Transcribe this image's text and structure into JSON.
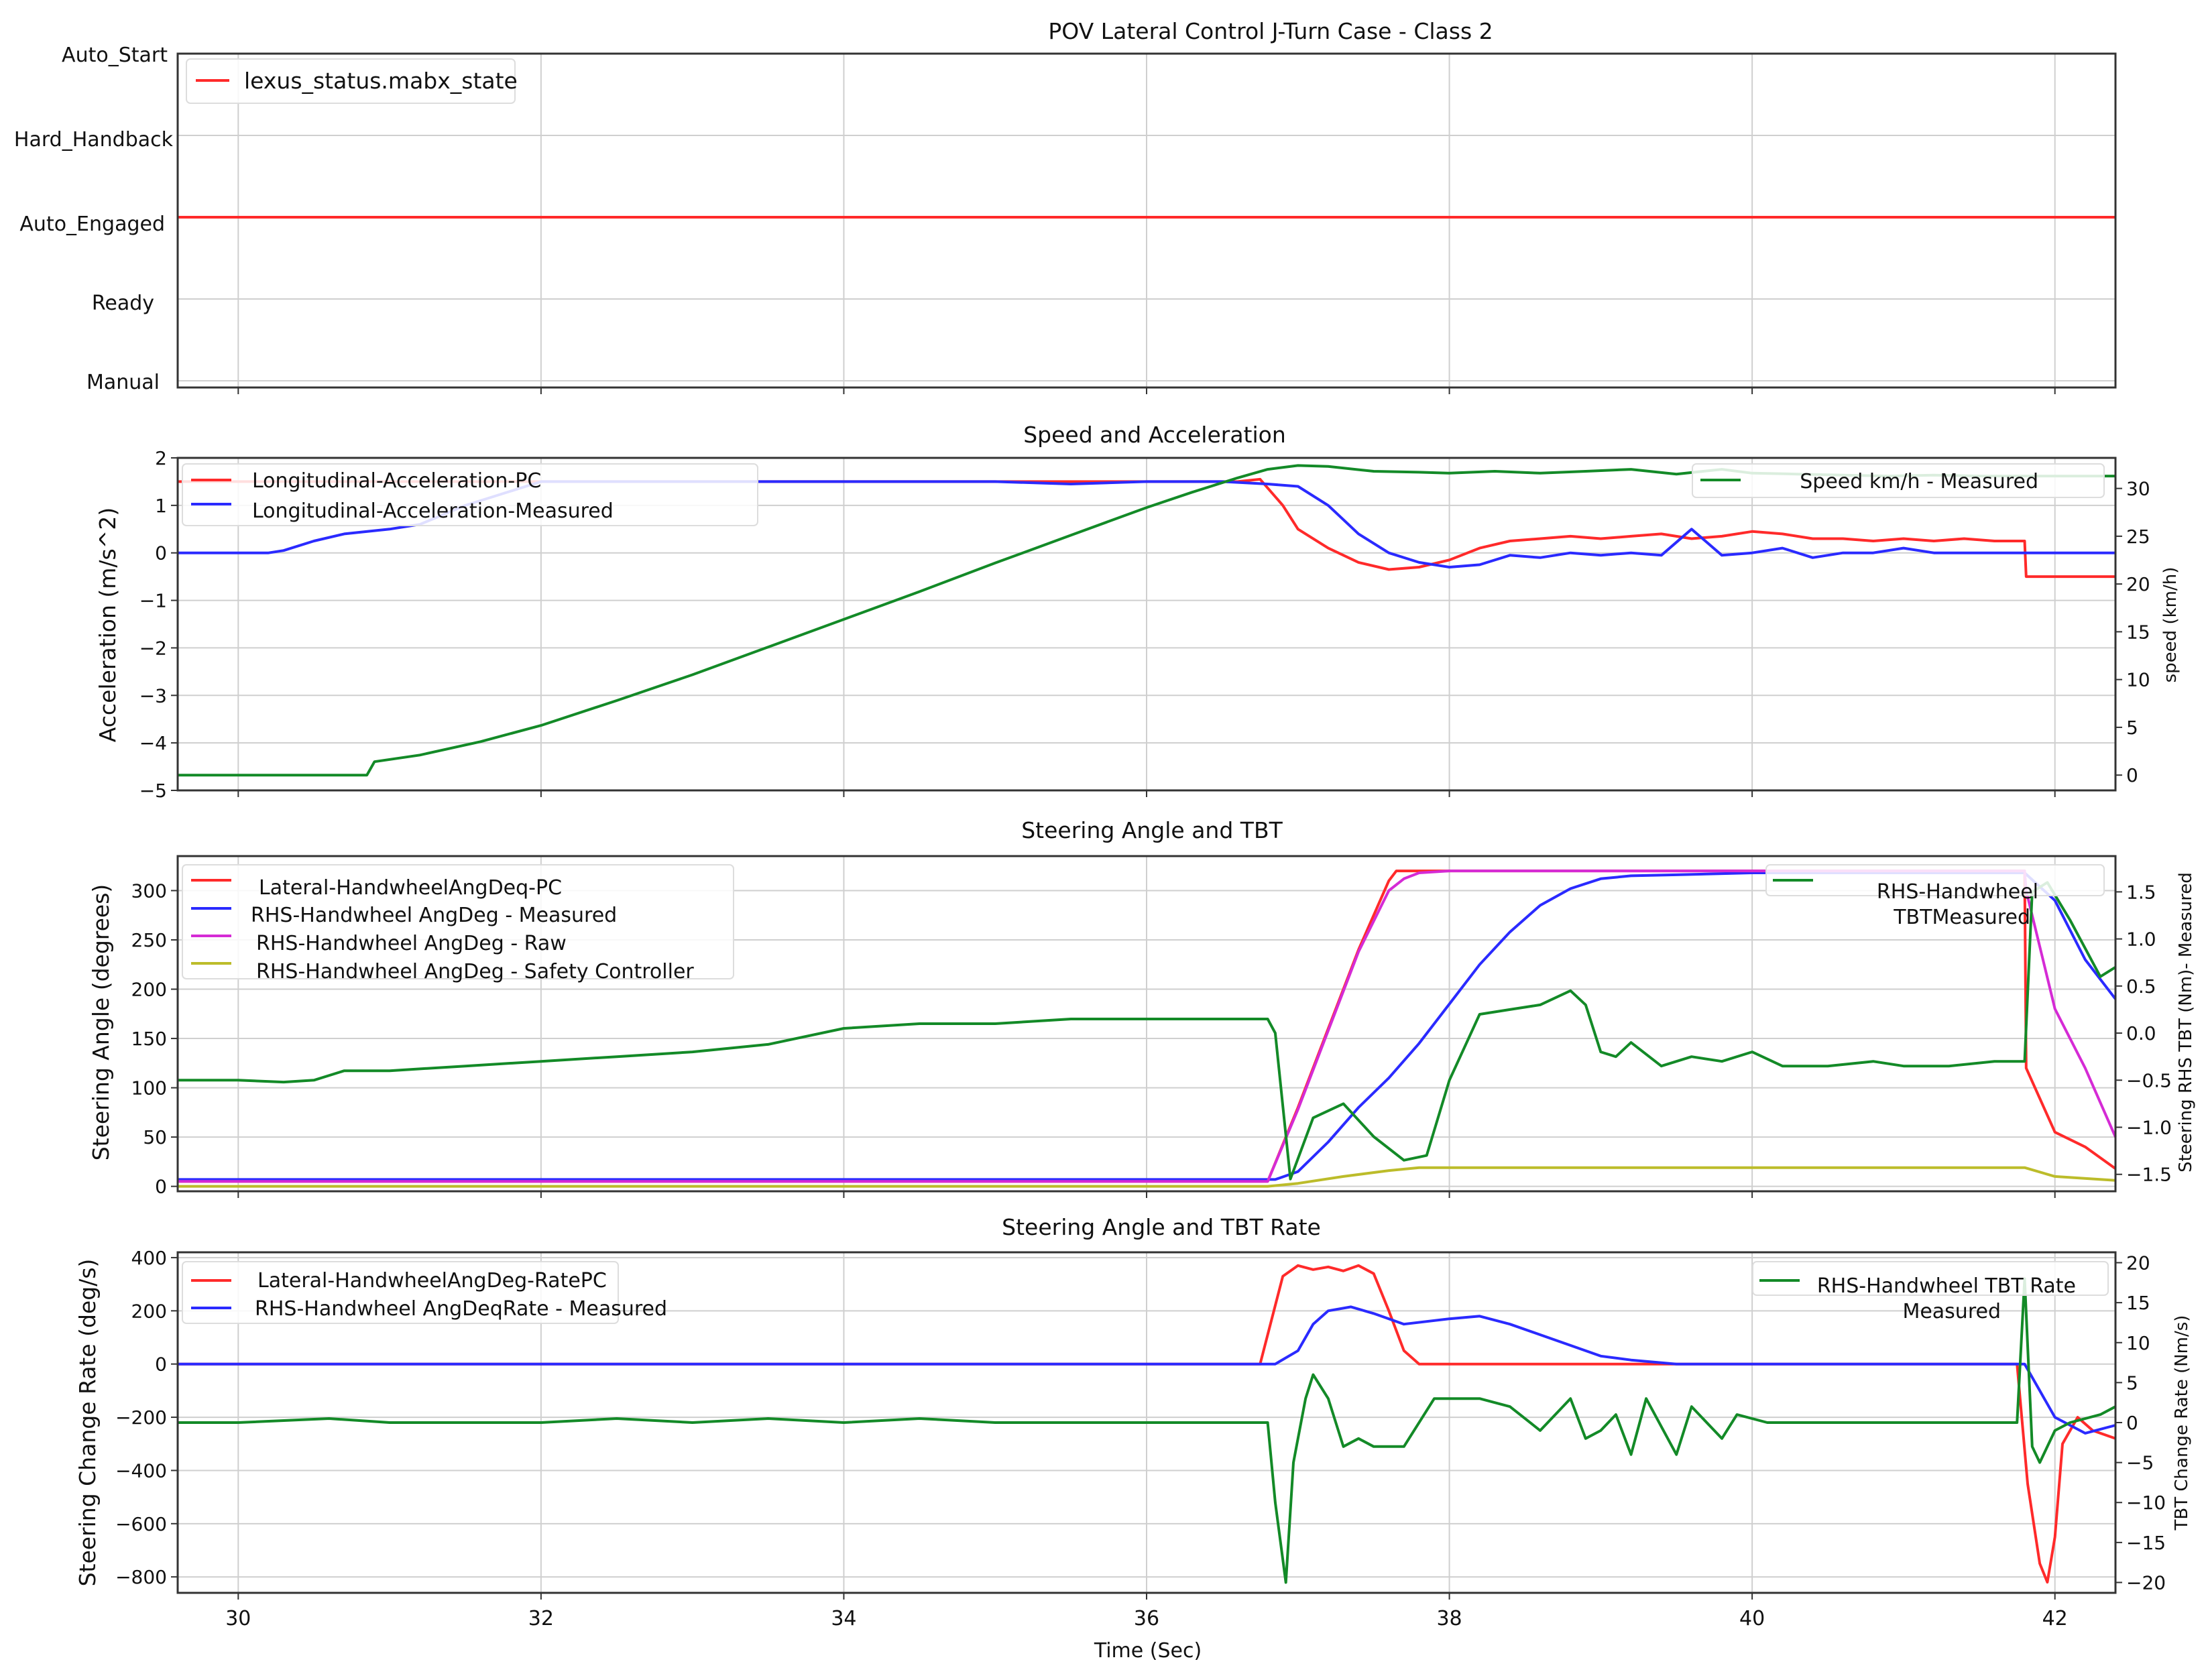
{
  "chart_data": [
    {
      "type": "line",
      "title": "POV Lateral Control J-Turn Case - Class 2",
      "xlim": [
        29.6,
        42.4
      ],
      "y_categories": [
        "Manual",
        "Ready",
        "Auto_Engaged",
        "Hard_Handback",
        "Auto_Start"
      ],
      "grid": true,
      "legend_position": "top-left",
      "series": [
        {
          "name": "lexus_status.mabx_state",
          "color": "#ff2a2a",
          "axis": "left",
          "x": [
            29.6,
            42.4
          ],
          "y": [
            "Auto_Engaged",
            "Auto_Engaged"
          ]
        }
      ]
    },
    {
      "type": "line",
      "title": "Speed and Acceleration",
      "ylabel": "Acceleration (m/s^2)",
      "ylabel_right": "speed (km/h)",
      "xlim": [
        29.6,
        42.4
      ],
      "ylim": [
        -5,
        2
      ],
      "ylim_right": [
        -1.6,
        33.2
      ],
      "yticks": [
        2,
        1,
        0,
        -1,
        -2,
        -3,
        -4,
        -5
      ],
      "yticks_right": [
        30,
        25,
        20,
        15,
        10,
        5,
        0
      ],
      "grid": true,
      "legend_position": "top-left",
      "legend_right_position": "top-right",
      "series": [
        {
          "name": "Longitudinal-Acceleration-PC",
          "color": "#ff2a2a",
          "axis": "left",
          "x": [
            29.6,
            30.2,
            31.0,
            32.0,
            33.0,
            34.0,
            35.0,
            36.0,
            36.6,
            36.75,
            36.9,
            37.0,
            37.2,
            37.4,
            37.6,
            37.8,
            38.0,
            38.2,
            38.4,
            38.6,
            38.8,
            39.0,
            39.2,
            39.4,
            39.6,
            39.8,
            40.0,
            40.2,
            40.4,
            40.6,
            40.8,
            41.0,
            41.2,
            41.4,
            41.6,
            41.8,
            41.81,
            42.4
          ],
          "y": [
            1.5,
            1.5,
            1.5,
            1.5,
            1.5,
            1.5,
            1.5,
            1.5,
            1.5,
            1.55,
            1.0,
            0.5,
            0.1,
            -0.2,
            -0.35,
            -0.3,
            -0.15,
            0.1,
            0.25,
            0.3,
            0.35,
            0.3,
            0.35,
            0.4,
            0.3,
            0.35,
            0.45,
            0.4,
            0.3,
            0.3,
            0.25,
            0.3,
            0.25,
            0.3,
            0.25,
            0.25,
            -0.5,
            -0.5
          ]
        },
        {
          "name": "Longitudinal-Acceleration-Measured",
          "color": "#2a2aff",
          "axis": "left",
          "x": [
            29.6,
            29.9,
            30.2,
            30.3,
            30.5,
            30.7,
            31.0,
            31.2,
            31.5,
            32.0,
            33.0,
            34.0,
            35.0,
            35.5,
            36.0,
            36.5,
            36.8,
            37.0,
            37.2,
            37.4,
            37.6,
            37.8,
            38.0,
            38.2,
            38.4,
            38.6,
            38.8,
            39.0,
            39.2,
            39.4,
            39.6,
            39.8,
            40.0,
            40.2,
            40.4,
            40.6,
            40.8,
            41.0,
            41.2,
            41.4,
            41.6,
            41.8,
            42.0,
            42.2,
            42.4
          ],
          "y": [
            0,
            0,
            0,
            0.05,
            0.25,
            0.4,
            0.5,
            0.6,
            1.0,
            1.5,
            1.5,
            1.5,
            1.5,
            1.45,
            1.5,
            1.5,
            1.45,
            1.4,
            1.0,
            0.4,
            0.0,
            -0.2,
            -0.3,
            -0.25,
            -0.05,
            -0.1,
            0.0,
            -0.05,
            0.0,
            -0.05,
            0.5,
            -0.05,
            0.0,
            0.1,
            -0.1,
            0.0,
            0.0,
            0.1,
            0.0,
            0.0,
            0.0,
            0.0,
            0.0,
            0.0,
            0.0
          ]
        },
        {
          "name": "Speed km/h - Measured",
          "color": "#138a27",
          "axis": "right",
          "x": [
            29.6,
            30.0,
            30.5,
            30.85,
            30.9,
            31.2,
            31.6,
            32.0,
            32.5,
            33.0,
            33.5,
            34.0,
            34.5,
            35.0,
            35.5,
            36.0,
            36.3,
            36.6,
            36.8,
            37.0,
            37.2,
            37.5,
            37.8,
            38.0,
            38.3,
            38.6,
            38.9,
            39.2,
            39.5,
            39.8,
            40.0,
            40.3,
            40.6,
            40.9,
            41.2,
            41.5,
            41.8,
            42.1,
            42.4
          ],
          "y": [
            0,
            0,
            0,
            0,
            1.4,
            2.1,
            3.5,
            5.2,
            7.8,
            10.5,
            13.4,
            16.3,
            19.2,
            22.2,
            25.1,
            28.0,
            29.6,
            31.1,
            32.0,
            32.4,
            32.3,
            31.8,
            31.7,
            31.6,
            31.8,
            31.6,
            31.8,
            32.0,
            31.5,
            32.0,
            31.6,
            31.5,
            31.4,
            31.3,
            31.4,
            31.3,
            31.3,
            31.3,
            31.3
          ]
        }
      ]
    },
    {
      "type": "line",
      "title": "Steering Angle and TBT",
      "ylabel": "Steering Angle (degrees)",
      "ylabel_right": "Steering RHS TBT (Nm)- Measured",
      "xlim": [
        29.6,
        42.4
      ],
      "ylim": [
        -5,
        335
      ],
      "ylim_right": [
        -1.68,
        1.88
      ],
      "yticks": [
        300,
        250,
        200,
        150,
        100,
        50,
        0
      ],
      "yticks_right": [
        1.5,
        1.0,
        0.5,
        0.0,
        -0.5,
        -1.0,
        -1.5
      ],
      "grid": true,
      "legend_position": "top-left",
      "legend_right_position": "top-right",
      "series": [
        {
          "name": "Lateral-HandwheelAngDeq-PC",
          "color": "#ff2a2a",
          "axis": "left",
          "x": [
            29.6,
            36.8,
            37.0,
            37.2,
            37.4,
            37.6,
            37.65,
            38.0,
            40.0,
            41.8,
            41.81,
            42.0,
            42.2,
            42.4
          ],
          "y": [
            5,
            5,
            80,
            160,
            240,
            310,
            320,
            320,
            320,
            320,
            120,
            55,
            40,
            18
          ]
        },
        {
          "name": "RHS-Handwheel AngDeg - Measured",
          "color": "#2a2aff",
          "axis": "left",
          "x": [
            29.6,
            36.85,
            37.0,
            37.2,
            37.4,
            37.6,
            37.8,
            38.0,
            38.2,
            38.4,
            38.6,
            38.8,
            39.0,
            39.2,
            39.5,
            40.0,
            41.0,
            41.8,
            42.0,
            42.2,
            42.4
          ],
          "y": [
            7,
            7,
            15,
            45,
            80,
            110,
            145,
            185,
            225,
            258,
            285,
            302,
            312,
            315,
            316,
            318,
            318,
            318,
            290,
            230,
            190
          ]
        },
        {
          "name": "RHS-Handwheel AngDeg - Raw",
          "color": "#d52bd5",
          "axis": "left",
          "x": [
            29.6,
            36.8,
            37.0,
            37.2,
            37.4,
            37.6,
            37.7,
            37.8,
            38.0,
            40.0,
            41.8,
            41.81,
            42.0,
            42.2,
            42.4
          ],
          "y": [
            5,
            5,
            78,
            158,
            238,
            300,
            312,
            318,
            320,
            320,
            320,
            300,
            180,
            120,
            50
          ]
        },
        {
          "name": "RHS-Handwheel AngDeg - Safety Controller",
          "color": "#bcbc2a",
          "axis": "left",
          "x": [
            29.6,
            36.8,
            37.0,
            37.3,
            37.6,
            37.8,
            40.0,
            41.8,
            42.0,
            42.4
          ],
          "y": [
            0,
            0,
            3,
            10,
            16,
            19,
            19,
            19,
            10,
            6
          ]
        },
        {
          "name": "RHS-Handwheel TBTMeasured",
          "color": "#138a27",
          "axis": "right",
          "x": [
            29.6,
            30.0,
            30.3,
            30.5,
            30.7,
            31.0,
            31.5,
            32.0,
            32.5,
            33.0,
            33.5,
            34.0,
            34.5,
            35.0,
            35.5,
            36.0,
            36.5,
            36.8,
            36.85,
            36.95,
            37.1,
            37.3,
            37.5,
            37.7,
            37.85,
            38.0,
            38.2,
            38.4,
            38.6,
            38.8,
            38.9,
            39.0,
            39.1,
            39.2,
            39.4,
            39.6,
            39.8,
            40.0,
            40.2,
            40.5,
            40.8,
            41.0,
            41.3,
            41.6,
            41.8,
            41.85,
            41.95,
            42.1,
            42.3,
            42.4
          ],
          "y": [
            -0.5,
            -0.5,
            -0.52,
            -0.5,
            -0.4,
            -0.4,
            -0.35,
            -0.3,
            -0.25,
            -0.2,
            -0.12,
            0.05,
            0.1,
            0.1,
            0.15,
            0.15,
            0.15,
            0.15,
            0.0,
            -1.55,
            -0.9,
            -0.75,
            -1.1,
            -1.35,
            -1.3,
            -0.5,
            0.2,
            0.25,
            0.3,
            0.45,
            0.3,
            -0.2,
            -0.25,
            -0.1,
            -0.35,
            -0.25,
            -0.3,
            -0.2,
            -0.35,
            -0.35,
            -0.3,
            -0.35,
            -0.35,
            -0.3,
            -0.3,
            1.5,
            1.6,
            1.2,
            0.6,
            0.7
          ]
        }
      ]
    },
    {
      "type": "line",
      "title": "Steering Angle and TBT Rate",
      "xlabel": "Time (Sec)",
      "ylabel": "Steering Change Rate (deg/s)",
      "ylabel_right": "TBT Change Rate (Nm/s)",
      "xlim": [
        29.6,
        42.4
      ],
      "ylim": [
        -860,
        420
      ],
      "ylim_right": [
        -21.3,
        21.3
      ],
      "xticks": [
        30,
        32,
        34,
        36,
        38,
        40,
        42
      ],
      "yticks": [
        400,
        200,
        0,
        -200,
        -400,
        -600,
        -800
      ],
      "yticks_right": [
        20,
        15,
        10,
        5,
        0,
        -5,
        -10,
        -15,
        -20
      ],
      "grid": true,
      "legend_position": "top-left",
      "legend_right_position": "top-right",
      "series": [
        {
          "name": "Lateral-HandwheelAngDeg-RatePC",
          "color": "#ff2a2a",
          "axis": "left",
          "x": [
            29.6,
            36.75,
            36.9,
            37.0,
            37.1,
            37.2,
            37.3,
            37.4,
            37.5,
            37.6,
            37.7,
            37.8,
            38.0,
            39.0,
            40.0,
            41.7,
            41.75,
            41.82,
            41.9,
            41.95,
            42.0,
            42.05,
            42.15,
            42.25,
            42.4
          ],
          "y": [
            0,
            0,
            330,
            370,
            355,
            365,
            350,
            370,
            340,
            200,
            50,
            0,
            0,
            0,
            0,
            0,
            0,
            -450,
            -750,
            -820,
            -650,
            -300,
            -200,
            -250,
            -280
          ]
        },
        {
          "name": "RHS-Handwheel AngDeqRate - Measured",
          "color": "#2a2aff",
          "axis": "left",
          "x": [
            29.6,
            36.85,
            37.0,
            37.1,
            37.2,
            37.35,
            37.5,
            37.7,
            38.0,
            38.2,
            38.4,
            38.6,
            38.8,
            39.0,
            39.2,
            39.5,
            40.0,
            41.7,
            41.8,
            41.9,
            42.0,
            42.1,
            42.2,
            42.4
          ],
          "y": [
            0,
            0,
            50,
            150,
            200,
            215,
            190,
            150,
            170,
            180,
            150,
            110,
            70,
            30,
            15,
            0,
            0,
            0,
            0,
            -100,
            -200,
            -230,
            -260,
            -230
          ]
        },
        {
          "name": "RHS-Handwheel TBT Rate Measured",
          "color": "#138a27",
          "axis": "right",
          "x": [
            29.6,
            30.0,
            30.6,
            31.0,
            31.5,
            32.0,
            32.5,
            33.0,
            33.5,
            34.0,
            34.5,
            35.0,
            35.5,
            36.0,
            36.5,
            36.8,
            36.85,
            36.92,
            36.97,
            37.05,
            37.1,
            37.2,
            37.3,
            37.4,
            37.5,
            37.7,
            37.9,
            38.0,
            38.2,
            38.4,
            38.6,
            38.8,
            38.9,
            39.0,
            39.1,
            39.2,
            39.3,
            39.5,
            39.6,
            39.8,
            39.9,
            40.1,
            40.5,
            41.0,
            41.5,
            41.7,
            41.75,
            41.8,
            41.85,
            41.9,
            42.0,
            42.1,
            42.3,
            42.4
          ],
          "y": [
            0,
            0,
            0.5,
            0,
            0,
            0,
            0.5,
            0,
            0.5,
            0,
            0.5,
            0,
            0,
            0,
            0,
            0,
            -10,
            -20,
            -5,
            3,
            6,
            3,
            -3,
            -2,
            -3,
            -3,
            3,
            3,
            3,
            2,
            -1,
            3,
            -2,
            -1,
            1,
            -4,
            3,
            -4,
            2,
            -2,
            1,
            0,
            0,
            0,
            0,
            0,
            0,
            18,
            -3,
            -5,
            -1,
            0,
            1,
            2
          ]
        }
      ]
    }
  ]
}
